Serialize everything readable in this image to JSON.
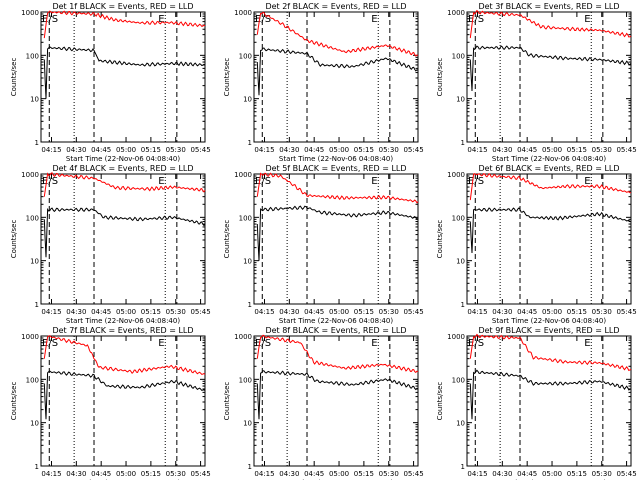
{
  "chart_data": {
    "type": "line",
    "shared": {
      "ylabel": "Counts/sec",
      "xlabel": "Start Time (22-Nov-06 04:08:40)",
      "x_ticks": [
        "04:15",
        "04:30",
        "04:45",
        "05:00",
        "05:15",
        "05:30",
        "05:45"
      ],
      "y_ticks": [
        "1",
        "10",
        "100",
        "1000"
      ],
      "yscale": "log",
      "ylim": [
        1,
        1000
      ],
      "xlim_minutes": [
        0,
        99
      ],
      "marker_labels": [
        "E/S",
        "E"
      ],
      "dashed_markers_min": [
        5,
        32,
        82
      ],
      "dotted_markers_min": [
        20,
        75
      ],
      "colors": {
        "events": "#000000",
        "lld": "#ff0000"
      }
    },
    "panels": [
      {
        "title": "Det 1f BLACK = Events, RED = LLD",
        "red": [
          {
            "t": 2,
            "v": 250
          },
          {
            "t": 4,
            "v": 1000
          },
          {
            "t": 32,
            "v": 900
          },
          {
            "t": 45,
            "v": 650
          },
          {
            "t": 60,
            "v": 560
          },
          {
            "t": 78,
            "v": 570
          },
          {
            "t": 99,
            "v": 480
          }
        ],
        "black": [
          {
            "t": 2,
            "v": 80
          },
          {
            "t": 3,
            "v": 10
          },
          {
            "t": 4,
            "v": 150
          },
          {
            "t": 32,
            "v": 130
          },
          {
            "t": 35,
            "v": 75
          },
          {
            "t": 60,
            "v": 60
          },
          {
            "t": 80,
            "v": 65
          },
          {
            "t": 99,
            "v": 60
          }
        ]
      },
      {
        "title": "Det 2f BLACK = Events, RED = LLD",
        "red": [
          {
            "t": 2,
            "v": 300
          },
          {
            "t": 4,
            "v": 1000
          },
          {
            "t": 18,
            "v": 500
          },
          {
            "t": 32,
            "v": 220
          },
          {
            "t": 55,
            "v": 120
          },
          {
            "t": 80,
            "v": 170
          },
          {
            "t": 99,
            "v": 100
          }
        ],
        "black": [
          {
            "t": 2,
            "v": 70
          },
          {
            "t": 3,
            "v": 12
          },
          {
            "t": 4,
            "v": 140
          },
          {
            "t": 32,
            "v": 110
          },
          {
            "t": 40,
            "v": 60
          },
          {
            "t": 60,
            "v": 55
          },
          {
            "t": 80,
            "v": 85
          },
          {
            "t": 99,
            "v": 45
          }
        ]
      },
      {
        "title": "Det 3f BLACK = Events, RED = LLD",
        "red": [
          {
            "t": 2,
            "v": 250
          },
          {
            "t": 4,
            "v": 1000
          },
          {
            "t": 32,
            "v": 850
          },
          {
            "t": 45,
            "v": 450
          },
          {
            "t": 65,
            "v": 400
          },
          {
            "t": 80,
            "v": 380
          },
          {
            "t": 99,
            "v": 280
          }
        ],
        "black": [
          {
            "t": 2,
            "v": 80
          },
          {
            "t": 3,
            "v": 15
          },
          {
            "t": 4,
            "v": 150
          },
          {
            "t": 32,
            "v": 150
          },
          {
            "t": 38,
            "v": 100
          },
          {
            "t": 60,
            "v": 85
          },
          {
            "t": 80,
            "v": 80
          },
          {
            "t": 99,
            "v": 65
          }
        ]
      },
      {
        "title": "Det 4f BLACK = Events, RED = LLD",
        "red": [
          {
            "t": 2,
            "v": 300
          },
          {
            "t": 4,
            "v": 1000
          },
          {
            "t": 32,
            "v": 800
          },
          {
            "t": 45,
            "v": 480
          },
          {
            "t": 65,
            "v": 450
          },
          {
            "t": 80,
            "v": 500
          },
          {
            "t": 99,
            "v": 420
          }
        ],
        "black": [
          {
            "t": 2,
            "v": 90
          },
          {
            "t": 3,
            "v": 12
          },
          {
            "t": 4,
            "v": 150
          },
          {
            "t": 32,
            "v": 150
          },
          {
            "t": 38,
            "v": 100
          },
          {
            "t": 60,
            "v": 90
          },
          {
            "t": 80,
            "v": 100
          },
          {
            "t": 99,
            "v": 70
          }
        ]
      },
      {
        "title": "Det 5f BLACK = Events, RED = LLD",
        "red": [
          {
            "t": 2,
            "v": 300
          },
          {
            "t": 4,
            "v": 1000
          },
          {
            "t": 16,
            "v": 900
          },
          {
            "t": 24,
            "v": 550
          },
          {
            "t": 32,
            "v": 320
          },
          {
            "t": 55,
            "v": 280
          },
          {
            "t": 80,
            "v": 290
          },
          {
            "t": 99,
            "v": 230
          }
        ],
        "black": [
          {
            "t": 2,
            "v": 70
          },
          {
            "t": 3,
            "v": 10
          },
          {
            "t": 4,
            "v": 150
          },
          {
            "t": 32,
            "v": 170
          },
          {
            "t": 40,
            "v": 130
          },
          {
            "t": 60,
            "v": 110
          },
          {
            "t": 80,
            "v": 130
          },
          {
            "t": 99,
            "v": 95
          }
        ]
      },
      {
        "title": "Det 6f BLACK = Events, RED = LLD",
        "red": [
          {
            "t": 2,
            "v": 250
          },
          {
            "t": 4,
            "v": 1000
          },
          {
            "t": 32,
            "v": 800
          },
          {
            "t": 45,
            "v": 470
          },
          {
            "t": 60,
            "v": 520
          },
          {
            "t": 80,
            "v": 520
          },
          {
            "t": 99,
            "v": 370
          }
        ],
        "black": [
          {
            "t": 2,
            "v": 80
          },
          {
            "t": 3,
            "v": 15
          },
          {
            "t": 4,
            "v": 150
          },
          {
            "t": 32,
            "v": 150
          },
          {
            "t": 38,
            "v": 100
          },
          {
            "t": 55,
            "v": 95
          },
          {
            "t": 80,
            "v": 120
          },
          {
            "t": 99,
            "v": 80
          }
        ]
      },
      {
        "title": "Det 7f BLACK = Events, RED = LLD",
        "red": [
          {
            "t": 2,
            "v": 300
          },
          {
            "t": 4,
            "v": 1000
          },
          {
            "t": 28,
            "v": 600
          },
          {
            "t": 35,
            "v": 190
          },
          {
            "t": 55,
            "v": 150
          },
          {
            "t": 78,
            "v": 200
          },
          {
            "t": 99,
            "v": 130
          }
        ],
        "black": [
          {
            "t": 2,
            "v": 80
          },
          {
            "t": 3,
            "v": 12
          },
          {
            "t": 4,
            "v": 150
          },
          {
            "t": 32,
            "v": 120
          },
          {
            "t": 40,
            "v": 70
          },
          {
            "t": 60,
            "v": 65
          },
          {
            "t": 80,
            "v": 90
          },
          {
            "t": 99,
            "v": 55
          }
        ]
      },
      {
        "title": "Det 8f BLACK = Events, RED = LLD",
        "red": [
          {
            "t": 2,
            "v": 300
          },
          {
            "t": 4,
            "v": 1000
          },
          {
            "t": 28,
            "v": 700
          },
          {
            "t": 36,
            "v": 250
          },
          {
            "t": 55,
            "v": 180
          },
          {
            "t": 78,
            "v": 220
          },
          {
            "t": 99,
            "v": 150
          }
        ],
        "black": [
          {
            "t": 2,
            "v": 80
          },
          {
            "t": 3,
            "v": 12
          },
          {
            "t": 4,
            "v": 150
          },
          {
            "t": 32,
            "v": 130
          },
          {
            "t": 38,
            "v": 90
          },
          {
            "t": 60,
            "v": 75
          },
          {
            "t": 80,
            "v": 100
          },
          {
            "t": 99,
            "v": 60
          }
        ]
      },
      {
        "title": "Det 9f BLACK = Events, RED = LLD",
        "red": [
          {
            "t": 2,
            "v": 300
          },
          {
            "t": 4,
            "v": 1000
          },
          {
            "t": 32,
            "v": 900
          },
          {
            "t": 40,
            "v": 320
          },
          {
            "t": 60,
            "v": 250
          },
          {
            "t": 80,
            "v": 240
          },
          {
            "t": 99,
            "v": 170
          }
        ],
        "black": [
          {
            "t": 2,
            "v": 80
          },
          {
            "t": 3,
            "v": 12
          },
          {
            "t": 4,
            "v": 150
          },
          {
            "t": 32,
            "v": 120
          },
          {
            "t": 40,
            "v": 80
          },
          {
            "t": 60,
            "v": 80
          },
          {
            "t": 80,
            "v": 90
          },
          {
            "t": 99,
            "v": 60
          }
        ]
      }
    ]
  }
}
